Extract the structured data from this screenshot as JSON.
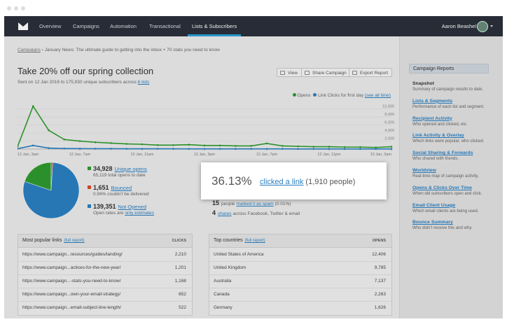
{
  "nav": {
    "items": [
      "Overview",
      "Campaigns",
      "Automation",
      "Transactional",
      "Lists & Subscribers"
    ],
    "user": "Aaron Beashel"
  },
  "breadcrumb": {
    "link": "Campaigns",
    "current": "January News: The ultimate guide to getting into the inbox + 70 stats you need to know"
  },
  "header": {
    "title": "Take 20% off our spring collection",
    "subtitle": "Sent on 12 Jan 2016 to 175,930 unique subscribers across",
    "subtitle_link": "6 lists",
    "buttons": [
      "View",
      "Share Campaign",
      "Export Report"
    ]
  },
  "chart_data": [
    {
      "type": "line",
      "categories": [
        "12 Jan, 3am",
        null,
        null,
        null,
        "12 Jan, 7am",
        null,
        null,
        null,
        "12 Jan, 11am",
        null,
        null,
        null,
        "12 Jan, 3pm",
        null,
        null,
        null,
        "12 Jan, 7pm",
        null,
        null,
        null,
        "12 Jan, 11pm",
        null,
        null,
        null,
        "13 Jan, 3am"
      ],
      "series": [
        {
          "name": "Opens",
          "color": "#2e9a2e",
          "values": [
            600,
            10700,
            4700,
            2400,
            2000,
            1700,
            1500,
            1300,
            1200,
            1000,
            1000,
            1100,
            900,
            900,
            800,
            800,
            1400,
            800,
            700,
            600,
            600,
            500,
            500,
            400,
            600
          ]
        },
        {
          "name": "Link Clicks for first day",
          "color": "#2a7fc1",
          "values": [
            100,
            900,
            250,
            150,
            120,
            100,
            90,
            80,
            80,
            70,
            70,
            60,
            60,
            60,
            50,
            50,
            60,
            50,
            40,
            40,
            40,
            30,
            30,
            30,
            30
          ]
        }
      ],
      "legend_link": "(see all time)",
      "ylim": [
        0,
        11000
      ],
      "yticks": [
        {
          "value": 2000,
          "label": "2,000"
        },
        {
          "value": 4000,
          "label": "4,000"
        },
        {
          "value": 6000,
          "label": "6,000"
        },
        {
          "value": 8000,
          "label": "8,000"
        },
        {
          "value": 10000,
          "label": "10,000"
        }
      ],
      "grid": true
    },
    {
      "type": "pie",
      "categories": [
        "Unique opens",
        "Bounced",
        "Not Opened"
      ],
      "values": [
        34928,
        1651,
        139351
      ],
      "value_labels": [
        "34,928",
        "1,651",
        "139,351"
      ],
      "colors": [
        "#2e9a2e",
        "#d9482b",
        "#2a7fc1"
      ],
      "notes": [
        "65,119 total opens to date",
        "0.94% couldn't be delivered",
        "Open rates are"
      ],
      "note_link": "only estimates"
    }
  ],
  "popup": {
    "percent": "36.13%",
    "link": "clicked a link",
    "people": "(1,910 people)"
  },
  "engagement": [
    {
      "count": "15",
      "text": "people",
      "link": "marked it as spam",
      "after": "(0.01%)"
    },
    {
      "count": "4",
      "link": "shares",
      "after": "across Facebook, Twitter & email"
    }
  ],
  "links_table": {
    "title": "Most popular links",
    "link": "(full report)",
    "column": "CLICKS",
    "rows": [
      [
        "https://www.campaign...resources/guides/landing/",
        "2,210"
      ],
      [
        "https://www.campaign...actices-for-the-new-year/",
        "1,201"
      ],
      [
        "https://www.campaign...-stats-you-need-to-know/",
        "1,168"
      ],
      [
        "https://www.campaign...own-your-email-strategy/",
        "652"
      ],
      [
        "https://www.campaign...email-subject-line-length/",
        "522"
      ]
    ]
  },
  "countries_table": {
    "title": "Top countries",
    "link": "(full report)",
    "column": "OPENS",
    "rows": [
      [
        "United States of America",
        "12,406"
      ],
      [
        "United Kingdom",
        "9,785"
      ],
      [
        "Australia",
        "7,137"
      ],
      [
        "Canada",
        "2,263"
      ],
      [
        "Germany",
        "1,626"
      ]
    ]
  },
  "sidebar": {
    "title": "Campaign Reports",
    "items": [
      {
        "label": "Snapshot",
        "description": "Summary of campaign results to date."
      },
      {
        "label": "Lists & Segments",
        "description": "Performance of each list and segment."
      },
      {
        "label": "Recipient Activity",
        "description": "Who opened and clicked, etc."
      },
      {
        "label": "Link Activity & Overlay",
        "description": "Which links were popular, who clicked."
      },
      {
        "label": "Social Sharing & Forwards",
        "description": "Who shared with friends."
      },
      {
        "label": "Worldview",
        "description": "Real-time map of campaign activity."
      },
      {
        "label": "Opens & Clicks Over Time",
        "description": "When did subscribers open and click."
      },
      {
        "label": "Email Client Usage",
        "description": "Which email clients are being used."
      },
      {
        "label": "Bounce Summary",
        "description": "Who didn't receive this and why."
      }
    ]
  }
}
